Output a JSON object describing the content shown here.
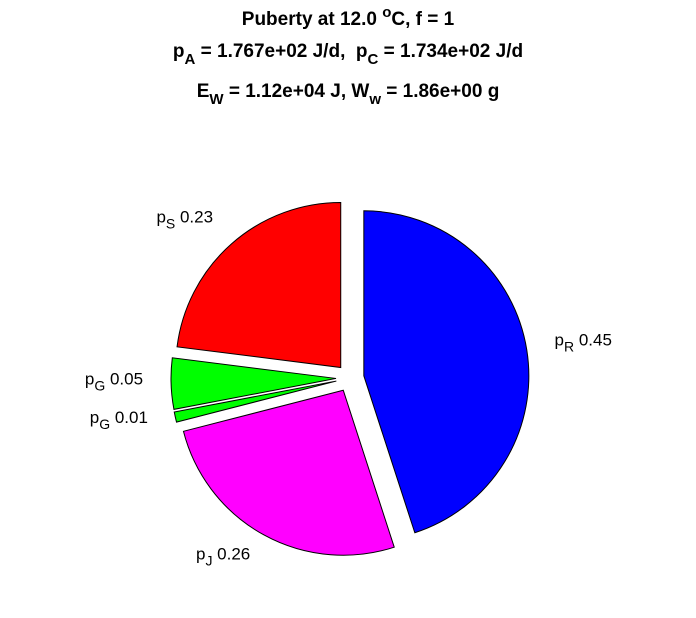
{
  "chart_data": {
    "type": "pie",
    "title": [
      [
        {
          "text": "Puberty at 12.0 "
        },
        {
          "text": "o",
          "script": "sup"
        },
        {
          "text": "C, f = 1"
        }
      ],
      [
        {
          "text": "p"
        },
        {
          "text": "A",
          "script": "sub"
        },
        {
          "text": " = 1.767e+02 J/d,  p"
        },
        {
          "text": "C",
          "script": "sub"
        },
        {
          "text": " = 1.734e+02 J/d"
        }
      ],
      [
        {
          "text": "E"
        },
        {
          "text": "W",
          "script": "sub"
        },
        {
          "text": " = 1.12e+04 J, W"
        },
        {
          "text": "w",
          "script": "sub"
        },
        {
          "text": " = 1.86e+00 g"
        }
      ]
    ],
    "categories": [
      {
        "name": "p",
        "sub": "S"
      },
      {
        "name": "p",
        "sub": "G"
      },
      {
        "name": "p",
        "sub": "G"
      },
      {
        "name": "p",
        "sub": "J"
      },
      {
        "name": "p",
        "sub": "R"
      }
    ],
    "values": [
      0.23,
      0.05,
      0.01,
      0.26,
      0.45
    ],
    "colors": [
      "#ff0000",
      "#00ff00",
      "#00ff00",
      "#ff00ff",
      "#0000ff"
    ],
    "exploded": true,
    "direction": "counterclockwise",
    "start": "top"
  }
}
